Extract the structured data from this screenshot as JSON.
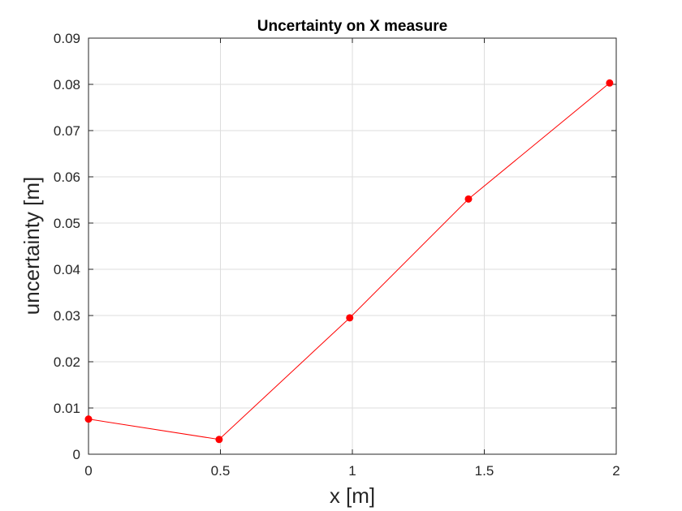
{
  "chart_data": {
    "type": "line",
    "title": "Uncertainty on X measure",
    "xlabel": "x [m]",
    "ylabel": "uncertainty [m]",
    "xlim": [
      0,
      2
    ],
    "ylim": [
      0,
      0.09
    ],
    "x_ticks": [
      0,
      0.5,
      1,
      1.5,
      2
    ],
    "x_tick_labels": [
      "0",
      "0.5",
      "1",
      "1.5",
      "2"
    ],
    "y_ticks": [
      0,
      0.01,
      0.02,
      0.03,
      0.04,
      0.05,
      0.06,
      0.07,
      0.08,
      0.09
    ],
    "y_tick_labels": [
      "0",
      "0.01",
      "0.02",
      "0.03",
      "0.04",
      "0.05",
      "0.06",
      "0.07",
      "0.08",
      "0.09"
    ],
    "grid": true,
    "series": [
      {
        "x": [
          0,
          0.495,
          0.99,
          1.44,
          1.975
        ],
        "values": [
          0.0076,
          0.0032,
          0.0295,
          0.0552,
          0.0803
        ],
        "color": "#ff0000",
        "marker": "circle"
      }
    ]
  }
}
